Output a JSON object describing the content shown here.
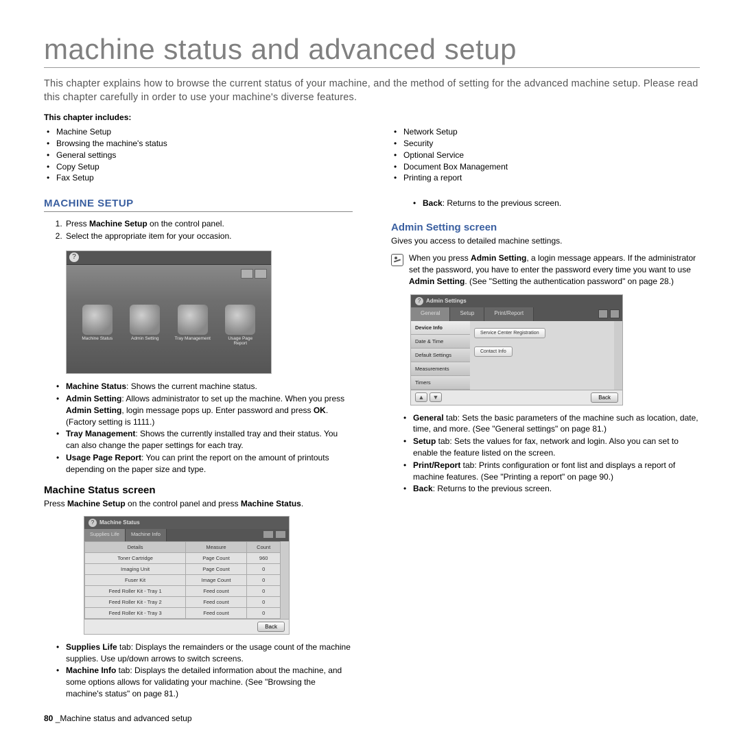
{
  "title": "machine status and advanced setup",
  "intro": "This chapter explains how to browse the current status of your machine, and the method of setting for the advanced machine setup. Please read this chapter carefully in order to use your machine's diverse features.",
  "chapter_includes_label": "This chapter includes:",
  "toc_left": [
    "Machine Setup",
    "Browsing the machine's status",
    "General settings",
    "Copy Setup",
    "Fax Setup"
  ],
  "toc_right": [
    "Network Setup",
    "Security",
    "Optional Service",
    "Document Box Management",
    "Printing a report"
  ],
  "left": {
    "section_title": "MACHINE SETUP",
    "steps": [
      {
        "pre": "Press ",
        "bold": "Machine Setup",
        "post": " on the control panel."
      },
      {
        "pre": "Select the appropriate item for your occasion.",
        "bold": "",
        "post": ""
      }
    ],
    "icons": [
      "Machine Status",
      "Admin Setting",
      "Tray Management",
      "Usage Page Report"
    ],
    "bullets": [
      {
        "bold": "Machine Status",
        "text": ": Shows the current machine status."
      },
      {
        "bold": "Admin Setting",
        "text": ": Allows administrator to set up the machine. When you press <b>Admin Setting</b>, login message pops up. Enter password and press <b>OK</b>. (Factory setting is 1111.)"
      },
      {
        "bold": "Tray Management",
        "text": ": Shows the currently installed tray and their status. You can also change the paper settings for each tray."
      },
      {
        "bold": "Usage Page Report",
        "text": ": You can print the report on the amount of printouts depending on the paper size and type."
      }
    ],
    "status_h": "Machine Status screen",
    "status_p_pre": "Press ",
    "status_p_b1": "Machine Setup",
    "status_p_mid": " on the control panel and press ",
    "status_p_b2": "Machine Status",
    "status_p_post": ".",
    "ss_title": "Machine Status",
    "ss_tabs": [
      "Supplies Life",
      "Machine Info"
    ],
    "ss_headers": [
      "Details",
      "Measure",
      "Count"
    ],
    "ss_rows": [
      [
        "Toner Cartridge",
        "Page Count",
        "960"
      ],
      [
        "Imaging Unit",
        "Page Count",
        "0"
      ],
      [
        "Fuser Kit",
        "Image Count",
        "0"
      ],
      [
        "Feed Roller Kit - Tray 1",
        "Feed count",
        "0"
      ],
      [
        "Feed Roller Kit - Tray 2",
        "Feed count",
        "0"
      ],
      [
        "Feed Roller Kit - Tray 3",
        "Feed count",
        "0"
      ]
    ],
    "ss_back": "Back",
    "bullets2": [
      {
        "bold": "Supplies Life",
        "text": " tab: Displays the remainders or the usage count of the machine supplies. Use up/down arrows to switch screens."
      },
      {
        "bold": "Machine Info",
        "text": " tab: Displays the detailed information about the machine, and some options allows for validating your machine. (See \"Browsing the machine's status\" on page 81.)"
      }
    ]
  },
  "right": {
    "back_bullet": {
      "bold": "Back",
      "text": ": Returns to the previous screen."
    },
    "admin_h": "Admin Setting screen",
    "admin_p": "Gives you access to detailed machine settings.",
    "note": "When you press <b>Admin Setting</b>, a login message appears. If the administrator set the password, you have to enter the password every time you want to use <b>Admin Setting</b>. (See \"Setting the authentication password\" on page 28.)",
    "as_title": "Admin Settings",
    "as_tabs": [
      "General",
      "Setup",
      "Print/Report"
    ],
    "as_sidebar": [
      "Device Info",
      "Date & Time",
      "Default Settings",
      "Measurements",
      "Timers"
    ],
    "as_chip1": "Service Center Registration",
    "as_chip2": "Contact Info",
    "as_back": "Back",
    "bullets": [
      {
        "bold": "General",
        "text": " tab: Sets the basic parameters of the machine such as location, date, time, and more. (See \"General settings\" on page 81.)"
      },
      {
        "bold": "Setup",
        "text": " tab: Sets the values for fax, network and login. Also you can set to enable the feature listed on the screen."
      },
      {
        "bold": "Print/Report",
        "text": " tab: Prints configuration or font list and displays a report of machine features. (See \"Printing a report\" on page 90.)"
      },
      {
        "bold": "Back",
        "text": ": Returns to the previous screen."
      }
    ]
  },
  "footer_page": "80",
  "footer_sep": " _",
  "footer_text": "Machine status and advanced setup"
}
